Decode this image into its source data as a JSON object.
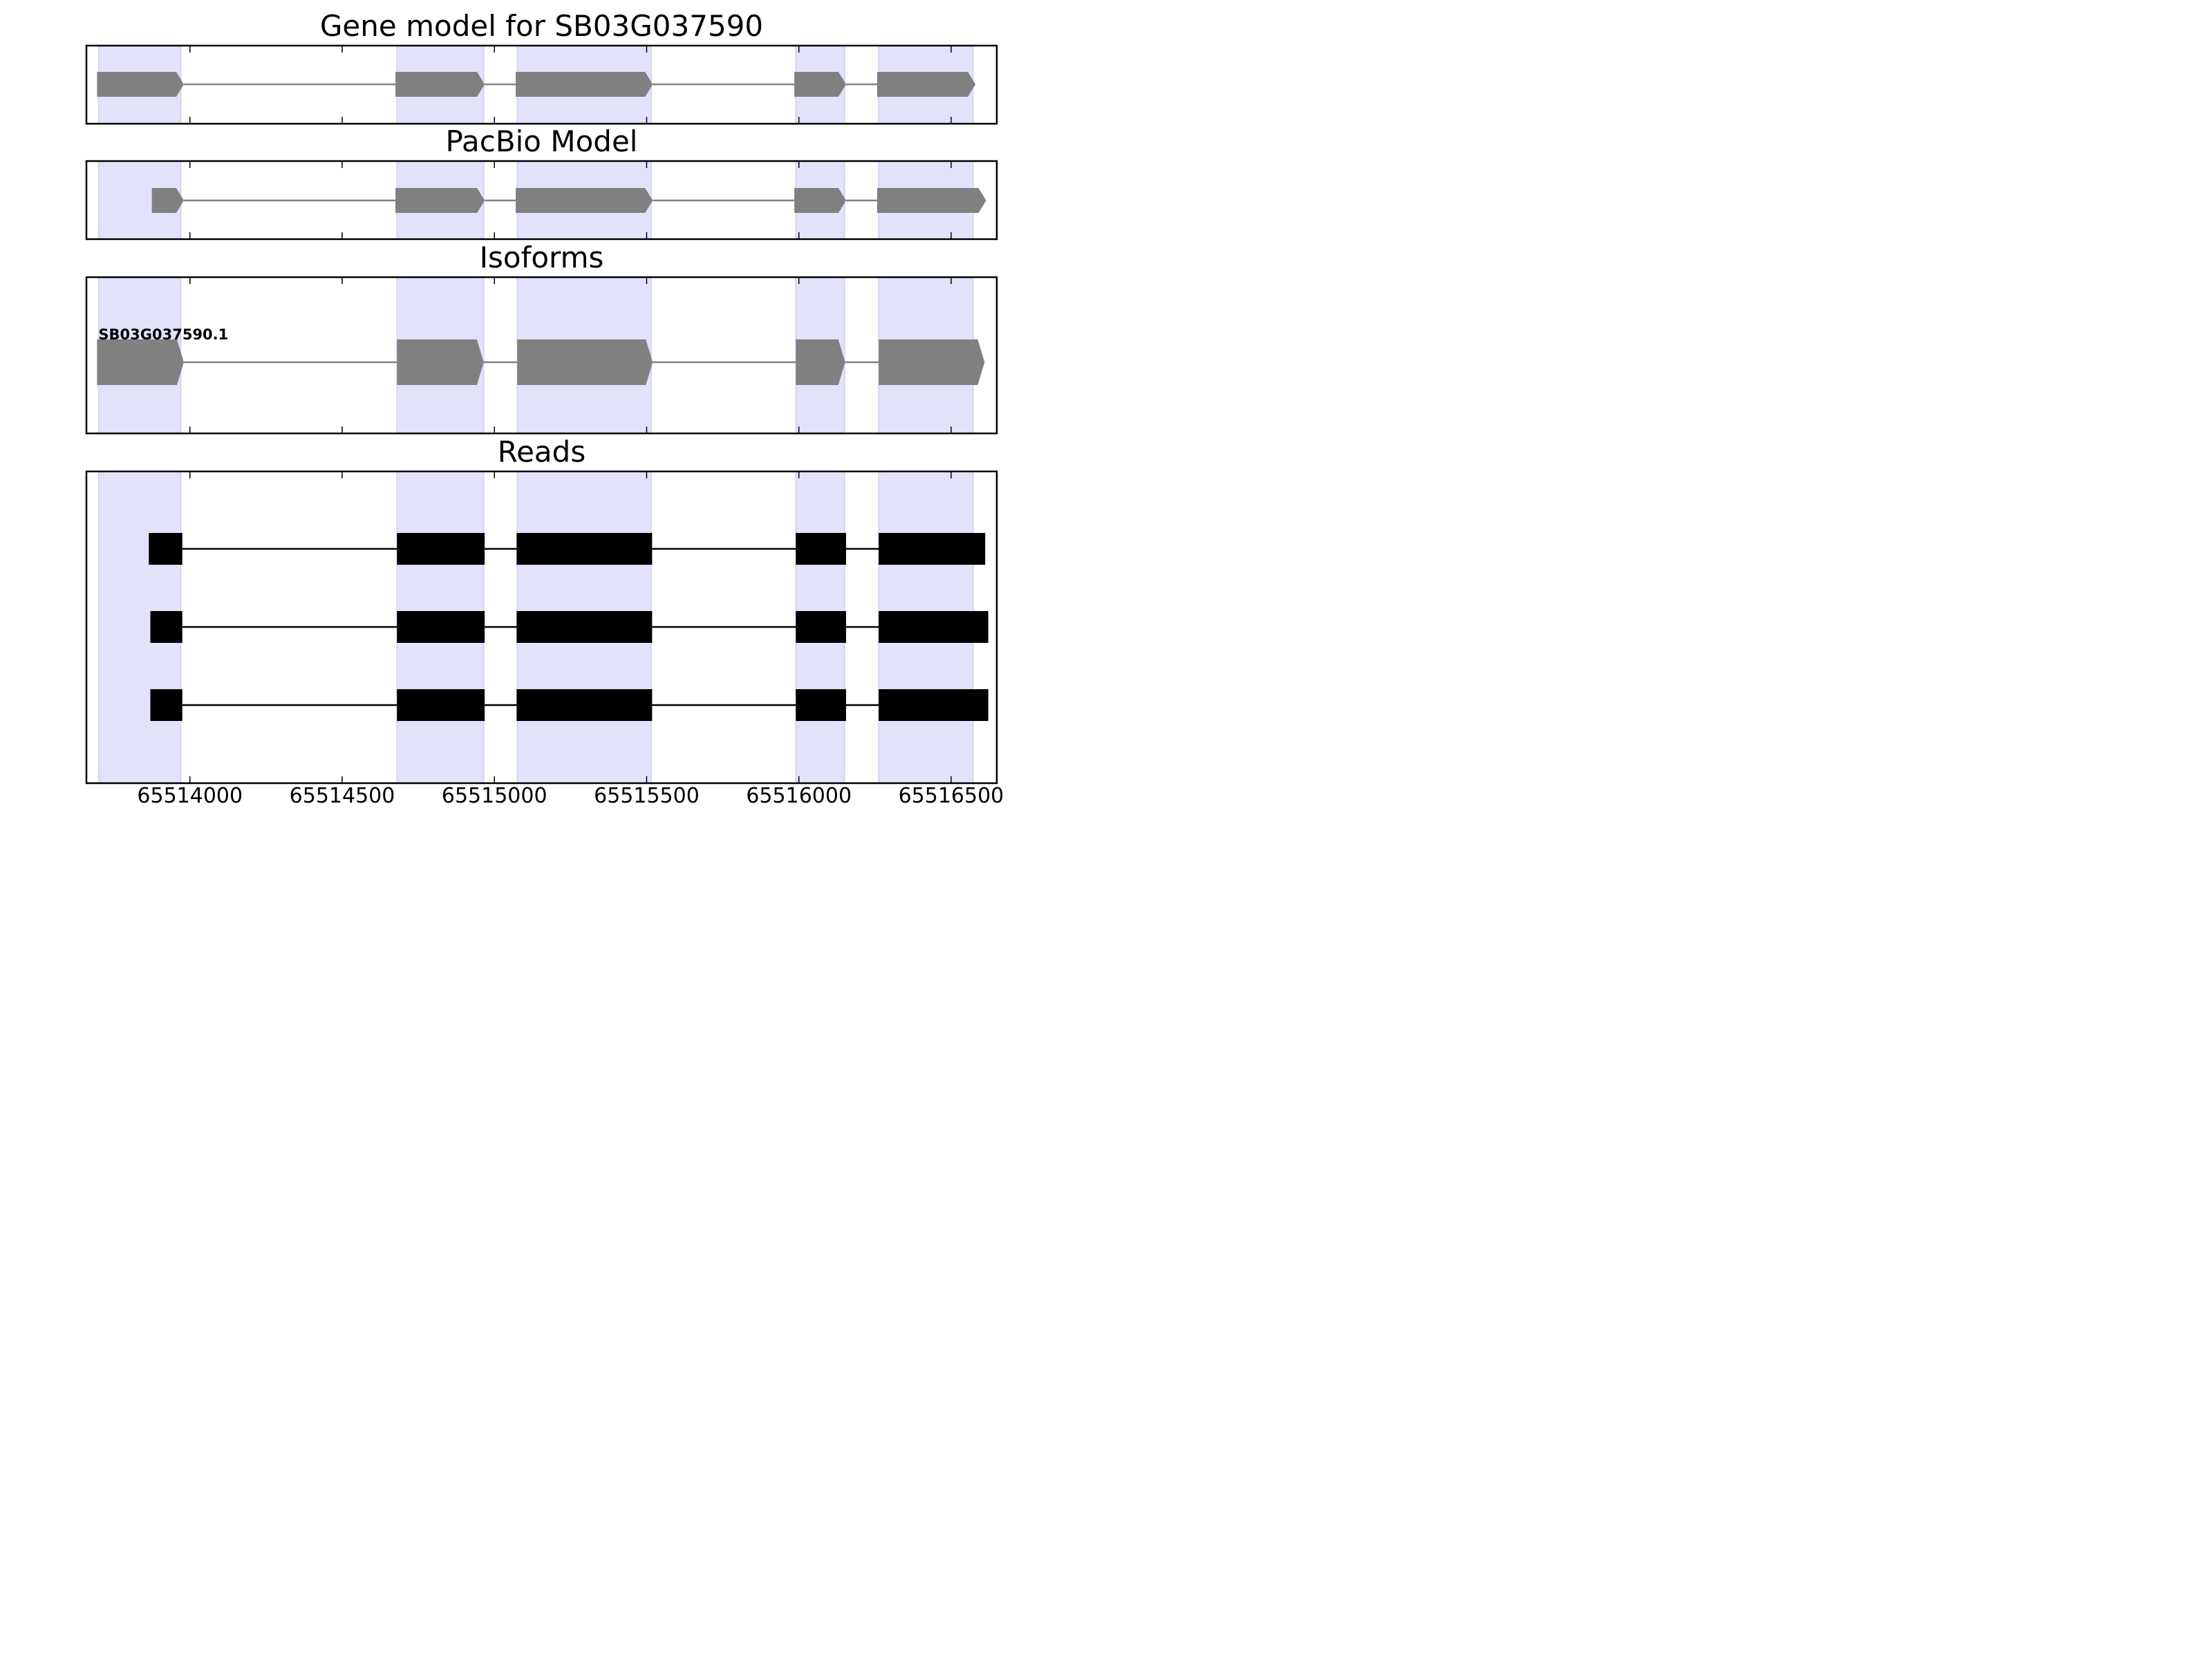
{
  "chart_data": {
    "type": "gene-structure",
    "xlim": [
      65513660,
      65516650
    ],
    "x_ticks": [
      65514000,
      65514500,
      65515000,
      65515500,
      65516000,
      65516500
    ],
    "x_tick_labels": [
      "65514000",
      "65514500",
      "65515000",
      "65515500",
      "65516000",
      "65516500"
    ],
    "exon_highlights": [
      [
        65513700,
        65513970
      ],
      [
        65514680,
        65514965
      ],
      [
        65515075,
        65515515
      ],
      [
        65515990,
        65516150
      ],
      [
        65516262,
        65516572
      ]
    ],
    "colors": {
      "highlight": "#e2e2fb",
      "highlight_edge": "#cfcff0",
      "model": "#808080",
      "read": "#000000",
      "frame": "#000000"
    },
    "panels": [
      {
        "title": "Gene model for SB03G037590",
        "kind": "model",
        "strand": "+",
        "exons": [
          [
            65513695,
            65513980
          ],
          [
            65514675,
            65514968
          ],
          [
            65515070,
            65515520
          ],
          [
            65515985,
            65516155
          ],
          [
            65516257,
            65516580
          ]
        ]
      },
      {
        "title": "PacBio Model",
        "kind": "model",
        "strand": "+",
        "exons": [
          [
            65513875,
            65513980
          ],
          [
            65514675,
            65514968
          ],
          [
            65515070,
            65515520
          ],
          [
            65515985,
            65516155
          ],
          [
            65516257,
            65516615
          ]
        ]
      },
      {
        "title": "Isoforms",
        "kind": "model",
        "strand": "+",
        "label": "SB03G037590.1",
        "exons": [
          [
            65513695,
            65513980
          ],
          [
            65514680,
            65514965
          ],
          [
            65515075,
            65515520
          ],
          [
            65515990,
            65516152
          ],
          [
            65516262,
            65516610
          ]
        ]
      },
      {
        "title": "Reads",
        "kind": "reads",
        "reads": [
          {
            "exons": [
              [
                65513865,
                65513975
              ],
              [
                65514680,
                65514968
              ],
              [
                65515073,
                65515518
              ],
              [
                65515990,
                65516155
              ],
              [
                65516262,
                65516612
              ]
            ]
          },
          {
            "exons": [
              [
                65513870,
                65513975
              ],
              [
                65514680,
                65514968
              ],
              [
                65515073,
                65515518
              ],
              [
                65515990,
                65516155
              ],
              [
                65516262,
                65516622
              ]
            ]
          },
          {
            "exons": [
              [
                65513870,
                65513975
              ],
              [
                65514680,
                65514968
              ],
              [
                65515073,
                65515518
              ],
              [
                65515990,
                65516155
              ],
              [
                65516262,
                65516622
              ]
            ]
          }
        ]
      }
    ]
  }
}
